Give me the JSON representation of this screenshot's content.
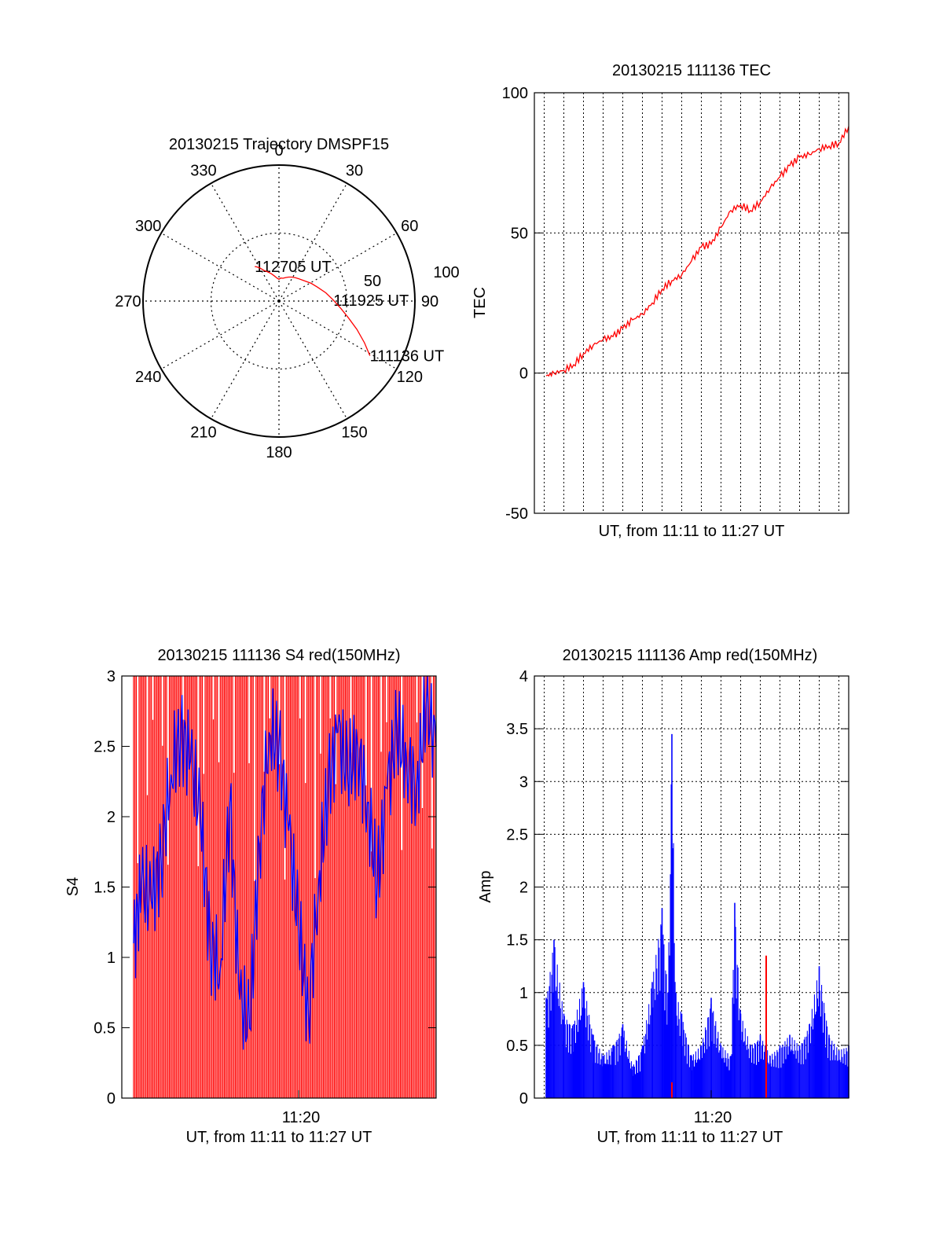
{
  "chart_data": [
    {
      "type": "polar",
      "title": "20130215 Trajectory DMSPF15",
      "azimuth_labels": [
        "0",
        "30",
        "60",
        "90",
        "120",
        "150",
        "180",
        "210",
        "240",
        "270",
        "300",
        "330"
      ],
      "radial_labels": [
        "50",
        "100"
      ],
      "rlim": [
        0,
        100
      ],
      "grid": true,
      "series": [
        {
          "color": "#ff0000",
          "points": [
            [
              121,
              78
            ],
            [
              116,
              70
            ],
            [
              110,
              61
            ],
            [
              104,
              53
            ],
            [
              97,
              46
            ],
            [
              89,
              40
            ],
            [
              80,
              35
            ],
            [
              70,
              30
            ],
            [
              61,
              27
            ],
            [
              52,
              24
            ],
            [
              42,
              22
            ],
            [
              35,
              21
            ],
            [
              28,
              20
            ],
            [
              22,
              19
            ],
            [
              16,
              18
            ],
            [
              10,
              17
            ],
            [
              4,
              17
            ],
            [
              0,
              16
            ],
            [
              -5,
              17
            ],
            [
              -11,
              19
            ],
            [
              -16,
              21
            ],
            [
              -21,
              23
            ],
            [
              -26,
              25
            ],
            [
              -30,
              28
            ],
            [
              -33,
              30
            ],
            [
              -35,
              31
            ]
          ]
        }
      ],
      "annotations": [
        {
          "text": "112705 UT",
          "az": -35,
          "r": 31
        },
        {
          "text": "111925 UT",
          "az": 89,
          "r": 40
        },
        {
          "text": "111136 UT",
          "az": 121,
          "r": 78
        }
      ]
    },
    {
      "type": "line",
      "title": "20130215 111136 TEC",
      "xlabel": "UT, from 11:11 to 11:27 UT",
      "ylabel": "TEC",
      "x_range_min": [
        11.0,
        27.0
      ],
      "ylim": [
        -50,
        100
      ],
      "yticks": [
        -50,
        0,
        50,
        100
      ],
      "grid": true,
      "series": [
        {
          "color": "#ff0000",
          "x": [
            11.6,
            12.0,
            12.5,
            13.0,
            13.5,
            14.0,
            14.5,
            15.0,
            15.5,
            16.0,
            16.5,
            17.0,
            17.5,
            18.0,
            18.5,
            19.0,
            19.5,
            20.0,
            20.5,
            21.0,
            21.5,
            22.0,
            22.5,
            23.0,
            23.5,
            24.0,
            24.5,
            25.0,
            25.5,
            26.0,
            26.5,
            27.0
          ],
          "y": [
            -1,
            0,
            1,
            3,
            7,
            10,
            12,
            13,
            16,
            19,
            21,
            25,
            30,
            33,
            35,
            40,
            45,
            46,
            52,
            58,
            60,
            58,
            61,
            66,
            70,
            74,
            77,
            78,
            80,
            81,
            82,
            88
          ]
        }
      ]
    },
    {
      "type": "line",
      "title": "20130215 111136 S4 red(150MHz)",
      "xlabel": "UT, from 11:11 to 11:27 UT",
      "ylabel": "S4",
      "xtick_labels": [
        "11:20"
      ],
      "ylim": [
        0,
        3
      ],
      "yticks": [
        0,
        0.5,
        1,
        1.5,
        2,
        2.5,
        3
      ],
      "series": [
        {
          "color": "#0000ff",
          "x": [
            11.6,
            12.0,
            12.5,
            13.0,
            13.5,
            14.0,
            14.5,
            15.0,
            15.5,
            16.0,
            16.5,
            17.0,
            17.5,
            18.0,
            18.5,
            19.0,
            19.5,
            20.0,
            20.5,
            21.0,
            21.5,
            22.0,
            22.5,
            23.0,
            23.5,
            24.0,
            24.5,
            25.0,
            25.5,
            26.0,
            26.5,
            27.0
          ],
          "y": [
            1.1,
            1.5,
            1.4,
            1.7,
            2.3,
            2.6,
            2.4,
            2.0,
            1.1,
            0.9,
            2.1,
            0.7,
            0.5,
            1.8,
            2.6,
            2.5,
            1.9,
            1.2,
            0.6,
            1.5,
            2.2,
            2.6,
            2.3,
            2.5,
            2.1,
            1.5,
            2.2,
            2.6,
            2.4,
            2.2,
            2.8,
            2.5
          ]
        }
      ]
    },
    {
      "type": "line",
      "title": "20130215 111136 Amp red(150MHz)",
      "xlabel": "UT, from 11:11 to 11:27 UT",
      "ylabel": "Amp",
      "xtick_labels": [
        "11:20"
      ],
      "ylim": [
        0,
        4
      ],
      "yticks": [
        0,
        0.5,
        1,
        1.5,
        2,
        2.5,
        3,
        3.5,
        4
      ],
      "series": [
        {
          "color": "#0000ff",
          "x": [
            11.6,
            12.0,
            12.5,
            13.0,
            13.5,
            14.0,
            14.5,
            15.0,
            15.5,
            16.0,
            16.5,
            17.0,
            17.5,
            17.8,
            18.0,
            18.2,
            18.5,
            19.0,
            19.5,
            20.0,
            20.5,
            21.0,
            21.2,
            21.5,
            22.0,
            22.5,
            23.0,
            23.5,
            24.0,
            24.5,
            25.0,
            25.5,
            26.0,
            26.5,
            27.0
          ],
          "y": [
            0.95,
            1.5,
            0.8,
            0.7,
            1.1,
            0.6,
            0.4,
            0.5,
            0.7,
            0.3,
            0.5,
            1.1,
            1.8,
            1.0,
            3.45,
            1.0,
            0.8,
            0.4,
            0.5,
            0.95,
            0.5,
            0.4,
            1.85,
            0.8,
            0.5,
            0.6,
            0.4,
            0.5,
            0.6,
            0.5,
            0.7,
            1.25,
            0.6,
            0.45,
            0.5
          ]
        },
        {
          "color": "#ff0000",
          "x": [
            18.0,
            22.8
          ],
          "y": [
            0.15,
            1.35
          ]
        }
      ]
    }
  ]
}
